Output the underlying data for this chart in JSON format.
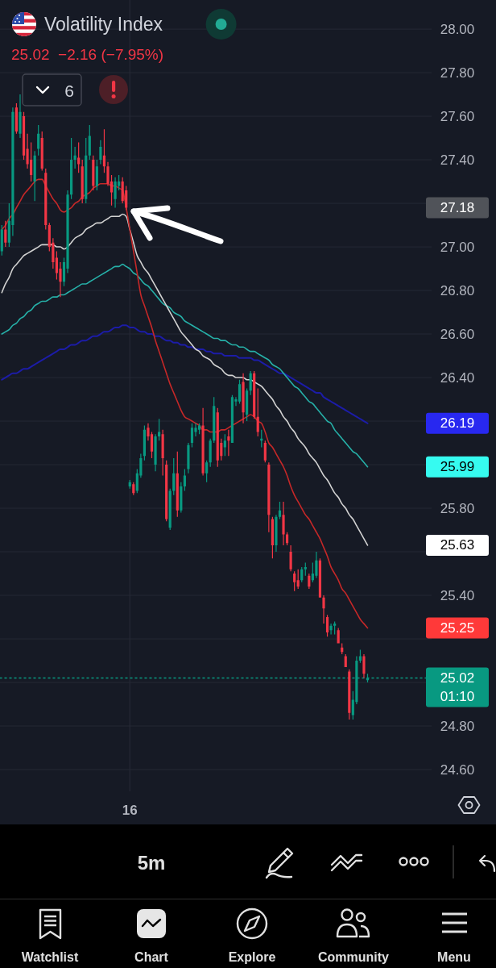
{
  "chart_data": {
    "type": "candlestick",
    "title": "Volatility Index",
    "subtitle": "25.02  −2.16 (−7.95%)",
    "categories": [
      null,
      null,
      null,
      null,
      null,
      null,
      null,
      null,
      null,
      null,
      null,
      null,
      null,
      null,
      null,
      null,
      null,
      null,
      null,
      null,
      null,
      null,
      null,
      null,
      null,
      null,
      null,
      null,
      null,
      null,
      null,
      null,
      null,
      null,
      null,
      "16",
      null,
      null,
      null,
      null,
      null,
      null,
      null,
      null,
      null,
      null,
      null,
      null,
      null,
      null,
      null,
      null,
      null,
      null,
      null,
      null,
      null,
      null,
      null,
      null,
      null,
      null,
      null,
      null,
      null,
      null,
      null,
      null,
      null,
      null,
      null,
      null,
      null,
      null,
      null,
      null,
      null,
      null,
      null,
      null,
      null,
      null,
      null,
      null,
      null,
      null,
      null,
      null,
      null,
      null,
      null,
      null,
      null,
      null,
      null,
      null,
      null,
      null,
      null,
      null,
      null,
      null,
      null,
      null,
      null,
      null,
      null,
      null,
      null,
      null,
      null,
      null,
      null,
      null,
      null,
      null,
      null,
      null
    ],
    "ohlc": [
      [
        26.98,
        27.1,
        26.96,
        27.08
      ],
      [
        27.08,
        27.12,
        27.0,
        27.02
      ],
      [
        27.02,
        27.2,
        27.0,
        27.12
      ],
      [
        27.1,
        27.64,
        27.05,
        27.62
      ],
      [
        27.64,
        27.66,
        27.52,
        27.53
      ],
      [
        27.52,
        27.7,
        27.5,
        27.62
      ],
      [
        27.6,
        27.62,
        27.4,
        27.42
      ],
      [
        27.45,
        27.52,
        27.36,
        27.38
      ],
      [
        27.4,
        27.48,
        27.3,
        27.33
      ],
      [
        27.3,
        27.44,
        27.21,
        27.42
      ],
      [
        27.45,
        27.56,
        27.42,
        27.52
      ],
      [
        27.5,
        27.53,
        27.35,
        27.36
      ],
      [
        27.34,
        27.36,
        27.08,
        27.1
      ],
      [
        27.1,
        27.11,
        26.98,
        27.0
      ],
      [
        27.02,
        27.04,
        26.9,
        26.93
      ],
      [
        26.95,
        26.98,
        26.85,
        26.88
      ],
      [
        26.9,
        26.93,
        26.77,
        26.84
      ],
      [
        26.84,
        26.95,
        26.82,
        26.93
      ],
      [
        26.9,
        27.26,
        26.88,
        27.24
      ],
      [
        27.24,
        27.5,
        27.22,
        27.4
      ],
      [
        27.4,
        27.46,
        27.36,
        27.42
      ],
      [
        27.41,
        27.48,
        27.34,
        27.38
      ],
      [
        27.37,
        27.4,
        27.2,
        27.22
      ],
      [
        27.22,
        27.5,
        27.2,
        27.42
      ],
      [
        27.42,
        27.56,
        27.4,
        27.51
      ],
      [
        27.4,
        27.42,
        27.26,
        27.28
      ],
      [
        27.28,
        27.4,
        27.26,
        27.37
      ],
      [
        27.4,
        27.49,
        27.38,
        27.46
      ],
      [
        27.42,
        27.54,
        27.34,
        27.37
      ],
      [
        27.37,
        27.39,
        27.28,
        27.29
      ],
      [
        27.3,
        27.33,
        27.19,
        27.25
      ],
      [
        27.22,
        27.32,
        27.18,
        27.3
      ],
      [
        27.28,
        27.33,
        27.26,
        27.3
      ],
      [
        27.3,
        27.32,
        27.2,
        27.21
      ],
      [
        27.26,
        27.28,
        27.17,
        27.18
      ],
      [
        25.9,
        25.93,
        25.89,
        25.92
      ],
      [
        25.91,
        25.92,
        25.86,
        25.87
      ],
      [
        25.88,
        25.98,
        25.87,
        25.96
      ],
      [
        25.95,
        26.05,
        25.94,
        26.03
      ],
      [
        26.04,
        26.18,
        26.02,
        26.16
      ],
      [
        26.17,
        26.19,
        26.11,
        26.13
      ],
      [
        26.14,
        26.15,
        26.03,
        26.06
      ],
      [
        26.0,
        26.14,
        25.97,
        26.13
      ],
      [
        26.13,
        26.21,
        26.11,
        26.15
      ],
      [
        26.14,
        26.16,
        25.95,
        26.03
      ],
      [
        26.0,
        26.02,
        25.74,
        25.75
      ],
      [
        25.71,
        25.89,
        25.7,
        25.88
      ],
      [
        25.88,
        26.03,
        25.86,
        25.96
      ],
      [
        25.96,
        26.06,
        25.76,
        25.79
      ],
      [
        25.79,
        25.92,
        25.78,
        25.9
      ],
      [
        25.9,
        25.98,
        25.88,
        25.95
      ],
      [
        25.98,
        26.1,
        25.96,
        26.09
      ],
      [
        26.1,
        26.19,
        26.08,
        26.17
      ],
      [
        26.15,
        26.19,
        26.13,
        26.17
      ],
      [
        26.16,
        26.19,
        26.14,
        26.18
      ],
      [
        26.18,
        26.26,
        25.95,
        25.96
      ],
      [
        25.96,
        26.02,
        25.92,
        26.01
      ],
      [
        26.01,
        26.12,
        25.99,
        26.11
      ],
      [
        26.11,
        26.31,
        26.1,
        26.27
      ],
      [
        26.24,
        26.26,
        25.99,
        26.02
      ],
      [
        26.1,
        26.12,
        26.02,
        26.04
      ],
      [
        26.08,
        26.14,
        26.04,
        26.11
      ],
      [
        26.13,
        26.16,
        26.04,
        26.11
      ],
      [
        26.1,
        26.32,
        26.1,
        26.31
      ],
      [
        26.29,
        26.31,
        26.27,
        26.3
      ],
      [
        26.29,
        26.39,
        26.28,
        26.37
      ],
      [
        26.38,
        26.42,
        26.19,
        26.24
      ],
      [
        26.23,
        26.35,
        26.2,
        26.34
      ],
      [
        26.34,
        26.43,
        26.32,
        26.42
      ],
      [
        26.42,
        26.43,
        26.21,
        26.22
      ],
      [
        26.22,
        26.35,
        26.13,
        26.15
      ],
      [
        26.11,
        26.16,
        26.08,
        26.12
      ],
      [
        26.1,
        26.11,
        26.01,
        26.02
      ],
      [
        26.0,
        26.01,
        25.69,
        25.77
      ],
      [
        25.75,
        25.76,
        25.57,
        25.63
      ],
      [
        25.63,
        25.77,
        25.6,
        25.76
      ],
      [
        25.76,
        25.83,
        25.75,
        25.79
      ],
      [
        25.77,
        25.83,
        25.63,
        25.68
      ],
      [
        25.68,
        25.69,
        25.63,
        25.64
      ],
      [
        25.6,
        25.63,
        25.51,
        25.52
      ],
      [
        25.5,
        25.51,
        25.42,
        25.46
      ],
      [
        25.47,
        25.52,
        25.43,
        25.44
      ],
      [
        25.47,
        25.53,
        25.46,
        25.52
      ],
      [
        25.52,
        25.55,
        25.49,
        25.53
      ],
      [
        25.49,
        25.5,
        25.43,
        25.44
      ],
      [
        25.47,
        25.55,
        25.46,
        25.5
      ],
      [
        25.49,
        25.6,
        25.48,
        25.56
      ],
      [
        25.56,
        25.57,
        25.39,
        25.39
      ],
      [
        25.39,
        25.4,
        25.27,
        25.34
      ],
      [
        25.3,
        25.31,
        25.21,
        25.23
      ],
      [
        25.24,
        25.27,
        25.22,
        25.26
      ],
      [
        25.26,
        25.28,
        25.22,
        25.27
      ],
      [
        25.24,
        25.25,
        25.18,
        25.18
      ],
      [
        25.16,
        25.18,
        25.13,
        25.14
      ],
      [
        25.12,
        25.13,
        25.07,
        25.07
      ],
      [
        25.05,
        25.06,
        24.83,
        24.86
      ],
      [
        24.85,
        24.96,
        24.83,
        24.92
      ],
      [
        24.91,
        25.12,
        24.9,
        25.1
      ],
      [
        25.1,
        25.15,
        25.09,
        25.12
      ],
      [
        25.12,
        25.13,
        25.02,
        25.04
      ],
      [
        25.01,
        25.04,
        25.0,
        25.02
      ],
      null,
      null,
      null,
      null,
      null,
      null,
      null,
      null,
      null,
      null,
      null,
      null,
      null,
      null,
      null,
      null,
      null
    ],
    "ylim": [
      24.5,
      28.13
    ],
    "yticks": [
      {
        "value": 24.6,
        "label": "24.60"
      },
      {
        "value": 24.8,
        "label": "24.80"
      },
      {
        "value": 25,
        "label": null
      },
      {
        "value": 25.2,
        "label": null
      },
      {
        "value": 25.4,
        "label": "25.40"
      },
      {
        "value": 25.6,
        "label": null
      },
      {
        "value": 25.8,
        "label": "25.80"
      },
      {
        "value": 26,
        "label": null
      },
      {
        "value": 26.2,
        "label": null
      },
      {
        "value": 26.4,
        "label": "26.40"
      },
      {
        "value": 26.6,
        "label": "26.60"
      },
      {
        "value": 26.8,
        "label": "26.80"
      },
      {
        "value": 27,
        "label": "27.00"
      },
      {
        "value": 27.2,
        "label": null
      },
      {
        "value": 27.4,
        "label": "27.40"
      },
      {
        "value": 27.6,
        "label": "27.60"
      },
      {
        "value": 27.8,
        "label": "27.80"
      },
      {
        "value": 28,
        "label": "28.00"
      }
    ],
    "grid": true,
    "series": [
      {
        "type": "line",
        "color": "#1c1ca8",
        "values": [
          26.39,
          26.4,
          26.41,
          26.42,
          26.42,
          26.43,
          26.44,
          26.44,
          26.45,
          26.46,
          26.47,
          26.48,
          26.49,
          26.5,
          26.51,
          26.52,
          26.53,
          26.53,
          26.54,
          26.55,
          26.55,
          26.56,
          26.57,
          26.57,
          26.58,
          26.59,
          26.59,
          26.6,
          26.61,
          26.61,
          26.62,
          26.63,
          26.63,
          26.64,
          26.64,
          26.63,
          26.63,
          26.62,
          26.61,
          26.61,
          26.6,
          26.6,
          26.59,
          26.59,
          26.58,
          26.57,
          26.57,
          26.56,
          26.56,
          26.55,
          26.55,
          26.54,
          26.54,
          26.53,
          26.53,
          26.53,
          26.52,
          26.52,
          26.51,
          26.51,
          26.51,
          26.5,
          26.5,
          26.5,
          26.5,
          26.49,
          26.49,
          26.49,
          26.49,
          26.48,
          26.48,
          26.47,
          26.46,
          26.45,
          26.44,
          26.43,
          26.42,
          26.42,
          26.41,
          26.4,
          26.39,
          26.38,
          26.37,
          26.36,
          26.35,
          26.34,
          26.33,
          26.33,
          26.31,
          26.3,
          26.29,
          26.28,
          26.27,
          26.26,
          26.25,
          26.24,
          26.23,
          26.22,
          26.21,
          26.2,
          26.19,
          null,
          null,
          null,
          null,
          null,
          null,
          null,
          null,
          null,
          null,
          null,
          null,
          null,
          null,
          null,
          null,
          null
        ]
      },
      {
        "type": "line",
        "color": "#26b0a8",
        "values": [
          26.6,
          26.61,
          26.62,
          26.64,
          26.65,
          26.67,
          26.68,
          26.7,
          26.71,
          26.73,
          26.74,
          26.75,
          26.75,
          26.76,
          26.77,
          26.77,
          26.78,
          26.78,
          26.79,
          26.8,
          26.81,
          26.82,
          26.83,
          26.83,
          26.84,
          26.85,
          26.86,
          26.87,
          26.88,
          26.89,
          26.9,
          26.91,
          26.91,
          26.92,
          26.91,
          26.9,
          26.88,
          26.87,
          26.85,
          26.83,
          26.82,
          26.8,
          26.78,
          26.76,
          26.74,
          26.73,
          26.72,
          26.7,
          26.69,
          26.68,
          26.66,
          26.65,
          26.64,
          26.63,
          26.62,
          26.61,
          26.6,
          26.59,
          26.58,
          26.58,
          26.57,
          26.57,
          26.56,
          26.55,
          26.55,
          26.54,
          26.54,
          26.53,
          26.52,
          26.52,
          26.51,
          26.5,
          26.49,
          26.48,
          26.46,
          26.45,
          26.44,
          26.42,
          26.4,
          26.38,
          26.36,
          26.35,
          26.33,
          26.31,
          26.29,
          26.28,
          26.26,
          26.24,
          26.22,
          26.2,
          26.19,
          26.16,
          26.14,
          26.12,
          26.1,
          26.08,
          26.06,
          26.05,
          26.03,
          26.01,
          25.99,
          null,
          null,
          null,
          null,
          null,
          null,
          null,
          null,
          null,
          null,
          null,
          null,
          null,
          null,
          null,
          null,
          null
        ]
      },
      {
        "type": "line",
        "color": "#d1d1d1",
        "values": [
          26.79,
          26.83,
          26.86,
          26.9,
          26.92,
          26.94,
          26.96,
          26.97,
          26.98,
          26.99,
          27.0,
          27.01,
          27.01,
          27.01,
          27.01,
          27.0,
          27.0,
          26.99,
          27.0,
          27.02,
          27.04,
          27.05,
          27.06,
          27.08,
          27.09,
          27.1,
          27.11,
          27.11,
          27.12,
          27.13,
          27.14,
          27.14,
          27.14,
          27.15,
          27.14,
          27.08,
          27.02,
          26.96,
          26.93,
          26.9,
          26.88,
          26.85,
          26.82,
          26.79,
          26.76,
          26.73,
          26.7,
          26.67,
          26.64,
          26.61,
          26.59,
          26.57,
          26.55,
          26.53,
          26.52,
          26.5,
          26.49,
          26.48,
          26.46,
          26.45,
          26.44,
          26.42,
          26.41,
          26.41,
          26.4,
          26.4,
          26.4,
          26.39,
          26.39,
          26.38,
          26.37,
          26.36,
          26.34,
          26.32,
          26.3,
          26.27,
          26.25,
          26.22,
          26.2,
          26.17,
          26.15,
          26.12,
          26.1,
          26.08,
          26.05,
          26.03,
          26.01,
          25.98,
          25.95,
          25.93,
          25.9,
          25.87,
          25.85,
          25.82,
          25.8,
          25.77,
          25.75,
          25.72,
          25.69,
          25.66,
          25.63,
          null,
          null,
          null,
          null,
          null,
          null,
          null,
          null,
          null,
          null,
          null,
          null,
          null,
          null,
          null,
          null,
          null
        ]
      },
      {
        "type": "line",
        "color": "#c62828",
        "values": [
          27.08,
          27.1,
          27.13,
          27.15,
          27.18,
          27.21,
          27.24,
          27.26,
          27.28,
          27.3,
          27.31,
          27.31,
          27.28,
          27.25,
          27.22,
          27.2,
          27.17,
          27.16,
          27.17,
          27.18,
          27.2,
          27.21,
          27.23,
          27.24,
          27.25,
          27.27,
          27.28,
          27.29,
          27.29,
          27.29,
          27.28,
          27.28,
          27.27,
          27.26,
          27.18,
          27.08,
          26.98,
          26.88,
          26.78,
          26.73,
          26.68,
          26.63,
          26.57,
          26.52,
          26.47,
          26.42,
          26.37,
          26.33,
          26.29,
          26.25,
          26.22,
          26.21,
          26.2,
          26.19,
          26.18,
          26.16,
          26.16,
          26.15,
          26.15,
          26.15,
          26.16,
          26.16,
          26.17,
          26.18,
          26.19,
          26.2,
          26.21,
          26.22,
          26.23,
          26.22,
          26.2,
          26.19,
          26.15,
          26.1,
          26.08,
          26.05,
          26.02,
          25.99,
          25.95,
          25.9,
          25.86,
          25.83,
          25.8,
          25.77,
          25.75,
          25.72,
          25.69,
          25.66,
          25.62,
          25.58,
          25.53,
          25.5,
          25.47,
          25.43,
          25.41,
          25.38,
          25.35,
          25.32,
          25.29,
          25.27,
          25.25,
          null,
          null,
          null,
          null,
          null,
          null,
          null,
          null,
          null,
          null,
          null,
          null,
          null,
          null,
          null,
          null,
          null
        ]
      }
    ],
    "ref_lines": [
      {
        "axis": "y",
        "value": 25.02,
        "label": "25.02",
        "color": "#089981",
        "line_style": "dotted"
      }
    ],
    "annotations": [
      "6",
      "27.18",
      "26.19",
      "25.99",
      "25.63",
      "25.25",
      "01:10",
      "5m",
      "Watchlist",
      "Chart",
      "Explore",
      "Community",
      "Menu"
    ]
  }
}
